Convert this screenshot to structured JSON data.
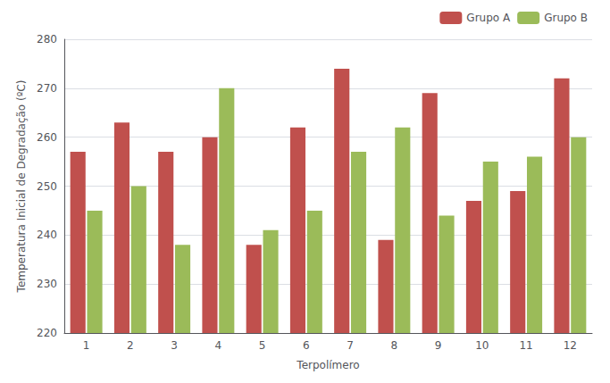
{
  "chart_data": {
    "type": "bar",
    "xlabel": "Terpolímero",
    "ylabel": "Temperatura Inicial de Degradação (ºC)",
    "categories": [
      1,
      2,
      3,
      4,
      5,
      6,
      7,
      8,
      9,
      10,
      11,
      12
    ],
    "series": [
      {
        "name": "Grupo A",
        "color": "#C0504D",
        "values": [
          257,
          263,
          257,
          260,
          238,
          262,
          274,
          239,
          269,
          247,
          249,
          272
        ]
      },
      {
        "name": "Grupo B",
        "color": "#9BBB59",
        "values": [
          245,
          250,
          238,
          270,
          241,
          245,
          257,
          262,
          244,
          255,
          256,
          260
        ]
      }
    ],
    "ylim": [
      220,
      280
    ],
    "yticks": [
      220,
      230,
      240,
      250,
      260,
      270,
      280
    ],
    "grid": true,
    "legend": "upper right"
  }
}
